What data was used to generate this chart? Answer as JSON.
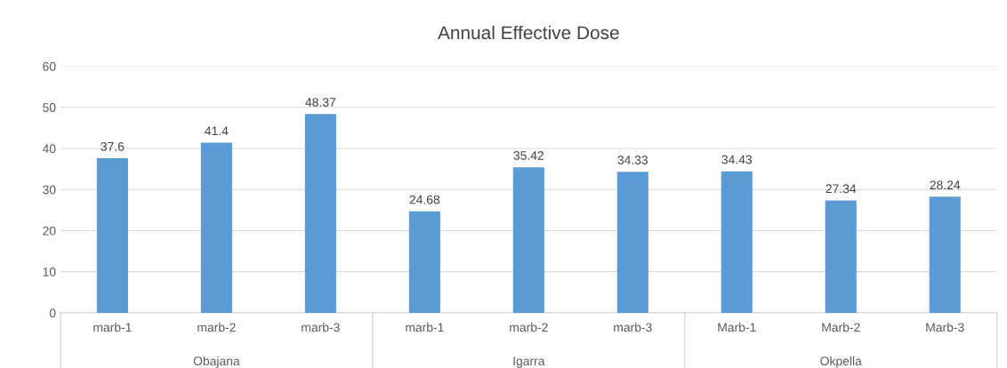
{
  "chart_data": {
    "type": "bar",
    "title": "Annual Effective Dose",
    "categories": [
      "marb-1",
      "marb-2",
      "marb-3",
      "marb-1",
      "marb-2",
      "marb-3",
      "Marb-1",
      "Marb-2",
      "Marb-3"
    ],
    "values": [
      37.6,
      41.4,
      48.37,
      24.68,
      35.42,
      34.33,
      34.43,
      27.34,
      28.24
    ],
    "color": "#5b9bd5",
    "ylim": [
      0,
      60
    ],
    "yticks": [
      0,
      10,
      20,
      30,
      40,
      50,
      60
    ],
    "grid": "y",
    "data_labels": true,
    "annotations": [
      "Obajana",
      "Igarra",
      "Okpella"
    ]
  }
}
